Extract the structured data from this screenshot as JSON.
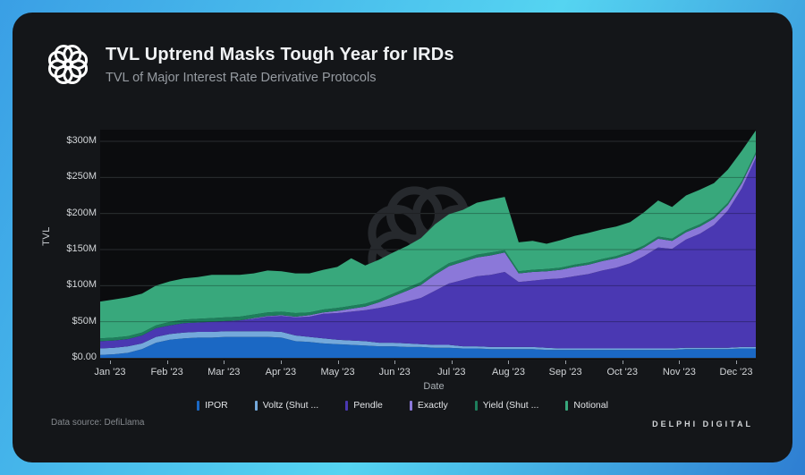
{
  "header": {
    "title": "TVL Uptrend Masks Tough Year for IRDs",
    "subtitle": "TVL of Major Interest Rate Derivative Protocols"
  },
  "footer": {
    "data_source": "Data source: DefiLlama",
    "brand": "DELPHI DIGITAL"
  },
  "colors": {
    "card_bg": "#141619",
    "plot_bg": "#0b0c0e",
    "gradient_start": "#3a9fe5",
    "gradient_end": "#2e7ed2",
    "watermark": "#2a2d31"
  },
  "chart_data": {
    "type": "area",
    "stacked": true,
    "title": "TVL Uptrend Masks Tough Year for IRDs",
    "subtitle": "TVL of Major Interest Rate Derivative Protocols",
    "xlabel": "Date",
    "ylabel": "TVL",
    "x_unit": "weeks of 2023",
    "ylim": [
      0,
      325
    ],
    "grid": true,
    "legend_position": "bottom",
    "y_ticks": [
      {
        "value": 0,
        "label": "$0.00"
      },
      {
        "value": 50,
        "label": "$50M"
      },
      {
        "value": 100,
        "label": "$100M"
      },
      {
        "value": 150,
        "label": "$150M"
      },
      {
        "value": 200,
        "label": "$200M"
      },
      {
        "value": 250,
        "label": "$250M"
      },
      {
        "value": 300,
        "label": "$300M"
      }
    ],
    "x_tick_labels": [
      "Jan '23",
      "Feb '23",
      "Mar '23",
      "Apr '23",
      "May '23",
      "Jun '23",
      "Jul '23",
      "Aug '23",
      "Sep '23",
      "Oct '23",
      "Nov '23",
      "Dec '23"
    ],
    "series": [
      {
        "name": "IPOR",
        "legend_label": "IPOR",
        "color": "#1b68c4",
        "values": [
          4,
          5,
          7,
          12,
          21,
          25,
          27,
          28,
          28,
          29,
          29,
          29,
          29,
          28,
          23,
          22,
          20,
          19,
          18,
          17,
          16,
          16,
          15,
          15,
          14,
          14,
          13,
          13,
          12,
          12,
          12,
          12,
          11,
          11,
          11,
          11,
          11,
          11,
          11,
          11,
          11,
          11,
          12,
          12,
          12,
          12,
          13,
          13
        ]
      },
      {
        "name": "Voltz",
        "legend_label": "Voltz (Shut ...",
        "color": "#74a9db",
        "values": [
          9,
          9,
          9,
          8,
          8,
          8,
          8,
          8,
          8,
          8,
          8,
          8,
          8,
          8,
          8,
          7,
          7,
          6,
          6,
          6,
          5,
          5,
          5,
          4,
          4,
          4,
          3,
          3,
          3,
          3,
          3,
          3,
          3,
          2,
          2,
          2,
          2,
          2,
          2,
          2,
          2,
          2,
          2,
          2,
          2,
          2,
          2,
          2
        ]
      },
      {
        "name": "Pendle",
        "legend_label": "Pendle",
        "color": "#4a38b2",
        "values": [
          10,
          10,
          10,
          11,
          12,
          12,
          13,
          13,
          14,
          14,
          15,
          17,
          20,
          22,
          25,
          28,
          34,
          37,
          40,
          43,
          48,
          52,
          58,
          64,
          75,
          85,
          92,
          97,
          100,
          104,
          90,
          92,
          95,
          97,
          100,
          103,
          108,
          112,
          118,
          128,
          140,
          138,
          150,
          158,
          170,
          190,
          220,
          262
        ]
      },
      {
        "name": "Exactly",
        "legend_label": "Exactly",
        "color": "#8b78d9",
        "values": [
          0,
          0,
          0,
          0,
          0,
          0,
          0,
          0,
          0,
          0,
          0,
          1,
          1,
          1,
          1,
          2,
          2,
          3,
          4,
          5,
          8,
          12,
          15,
          18,
          22,
          24,
          25,
          26,
          27,
          27,
          12,
          12,
          11,
          12,
          13,
          13,
          13,
          13,
          13,
          12,
          12,
          11,
          10,
          10,
          9,
          8,
          7,
          5
        ]
      },
      {
        "name": "Yield",
        "legend_label": "Yield (Shut ...",
        "color": "#1e7e5c",
        "values": [
          4,
          4,
          4,
          4,
          4,
          5,
          5,
          5,
          5,
          5,
          5,
          5,
          5,
          5,
          5,
          4,
          4,
          4,
          4,
          4,
          4,
          4,
          4,
          4,
          4,
          4,
          4,
          4,
          4,
          3,
          3,
          3,
          3,
          3,
          3,
          3,
          3,
          3,
          3,
          3,
          3,
          3,
          3,
          3,
          3,
          3,
          3,
          3
        ]
      },
      {
        "name": "Notional",
        "legend_label": "Notional",
        "color": "#38a87c",
        "values": [
          51,
          53,
          54,
          54,
          55,
          56,
          57,
          58,
          60,
          59,
          58,
          57,
          58,
          56,
          55,
          54,
          55,
          57,
          66,
          53,
          55,
          57,
          58,
          61,
          66,
          68,
          68,
          72,
          73,
          74,
          40,
          40,
          35,
          38,
          40,
          41,
          41,
          41,
          41,
          46,
          50,
          44,
          48,
          48,
          46,
          46,
          42,
          30
        ]
      }
    ]
  }
}
